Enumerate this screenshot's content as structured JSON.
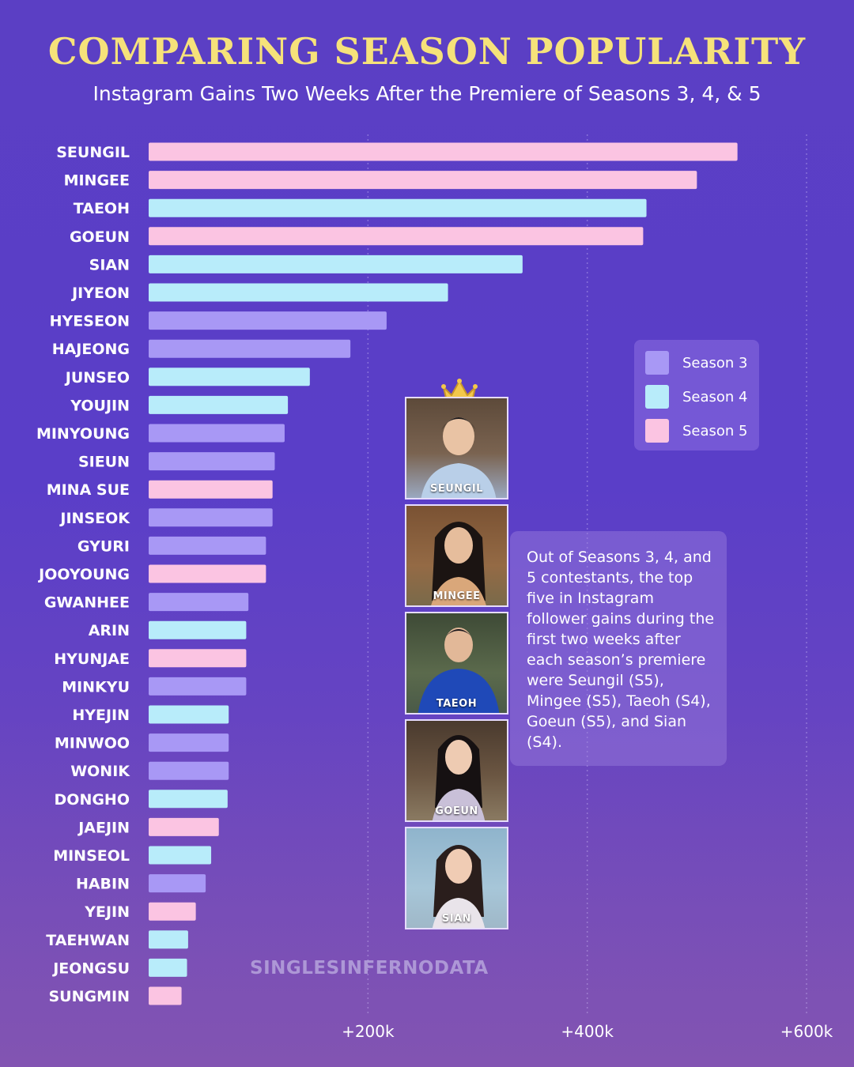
{
  "title": "COMPARING SEASON POPULARITY",
  "subtitle": "Instagram Gains Two Weeks After the Premiere of Seasons 3, 4, & 5",
  "colors": {
    "season3": "#a898f5",
    "season4": "#b8ecfa",
    "season5": "#fbc4e2",
    "title": "#f6e27a"
  },
  "legend": {
    "items": [
      {
        "label": "Season 3",
        "color": "#a898f5"
      },
      {
        "label": "Season 4",
        "color": "#b8ecfa"
      },
      {
        "label": "Season 5",
        "color": "#fbc4e2"
      }
    ]
  },
  "chart_data": {
    "type": "bar",
    "orientation": "horizontal",
    "title": "COMPARING SEASON POPULARITY",
    "subtitle": "Instagram Gains Two Weeks After the Premiere of Seasons 3, 4, & 5",
    "xlim": [
      0,
      600000
    ],
    "x_ticks": [
      {
        "value": 200000,
        "label": "+200k"
      },
      {
        "value": 400000,
        "label": "+400k"
      },
      {
        "value": 600000,
        "label": "+600k"
      }
    ],
    "grid": "vertical dashed",
    "legend_position": "right",
    "bars": [
      {
        "name": "SEUNGIL",
        "value": 537000,
        "season": "Season 5"
      },
      {
        "name": "MINGEE",
        "value": 500000,
        "season": "Season 5"
      },
      {
        "name": "TAEOH",
        "value": 454000,
        "season": "Season 4"
      },
      {
        "name": "GOEUN",
        "value": 451000,
        "season": "Season 5"
      },
      {
        "name": "SIAN",
        "value": 341000,
        "season": "Season 4"
      },
      {
        "name": "JIYEON",
        "value": 273000,
        "season": "Season 4"
      },
      {
        "name": "HYESEON",
        "value": 217000,
        "season": "Season 3"
      },
      {
        "name": "HAJEONG",
        "value": 184000,
        "season": "Season 3"
      },
      {
        "name": "JUNSEO",
        "value": 147000,
        "season": "Season 4"
      },
      {
        "name": "YOUJIN",
        "value": 127000,
        "season": "Season 4"
      },
      {
        "name": "MINYOUNG",
        "value": 124000,
        "season": "Season 3"
      },
      {
        "name": "SIEUN",
        "value": 115000,
        "season": "Season 3"
      },
      {
        "name": "MINA SUE",
        "value": 113000,
        "season": "Season 5"
      },
      {
        "name": "JINSEOK",
        "value": 113000,
        "season": "Season 3"
      },
      {
        "name": "GYURI",
        "value": 107000,
        "season": "Season 3"
      },
      {
        "name": "JOOYOUNG",
        "value": 107000,
        "season": "Season 5"
      },
      {
        "name": "GWANHEE",
        "value": 91000,
        "season": "Season 3"
      },
      {
        "name": "ARIN",
        "value": 89000,
        "season": "Season 4"
      },
      {
        "name": "HYUNJAE",
        "value": 89000,
        "season": "Season 5"
      },
      {
        "name": "MINKYU",
        "value": 89000,
        "season": "Season 3"
      },
      {
        "name": "HYEJIN",
        "value": 73000,
        "season": "Season 4"
      },
      {
        "name": "MINWOO",
        "value": 73000,
        "season": "Season 3"
      },
      {
        "name": "WONIK",
        "value": 73000,
        "season": "Season 3"
      },
      {
        "name": "DONGHO",
        "value": 72000,
        "season": "Season 4"
      },
      {
        "name": "JAEJIN",
        "value": 64000,
        "season": "Season 5"
      },
      {
        "name": "MINSEOL",
        "value": 57000,
        "season": "Season 4"
      },
      {
        "name": "HABIN",
        "value": 52000,
        "season": "Season 3"
      },
      {
        "name": "YEJIN",
        "value": 43000,
        "season": "Season 5"
      },
      {
        "name": "TAEHWAN",
        "value": 36000,
        "season": "Season 4"
      },
      {
        "name": "JEONGSU",
        "value": 35000,
        "season": "Season 4"
      },
      {
        "name": "SUNGMIN",
        "value": 30000,
        "season": "Season 5"
      }
    ]
  },
  "photos": [
    {
      "label": "SEUNGIL",
      "icon": "crown-icon"
    },
    {
      "label": "MINGEE"
    },
    {
      "label": "TAEOH"
    },
    {
      "label": "GOEUN"
    },
    {
      "label": "SIAN"
    }
  ],
  "note": "Out of Seasons 3, 4, and 5 contestants, the top five in Instagram follower gains during the first two weeks after each season’s premiere were Seungil (S5), Mingee (S5), Taeoh (S4), Goeun (S5), and Sian (S4).",
  "watermark": "SINGLESINFERNODATA"
}
